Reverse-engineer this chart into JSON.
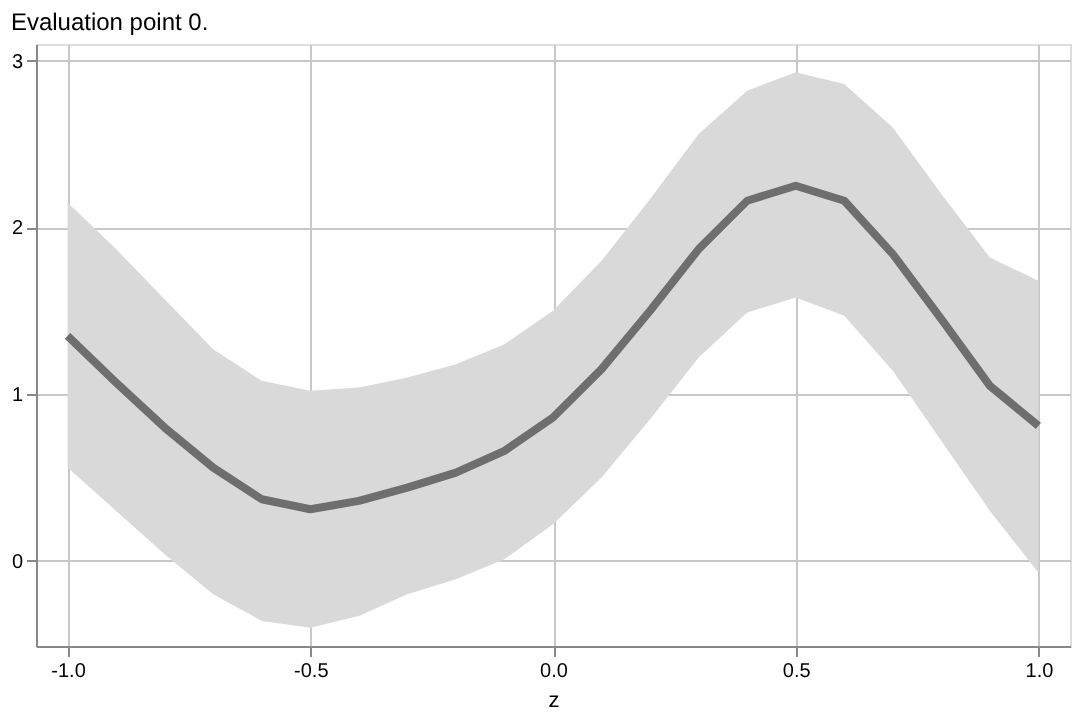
{
  "chart_data": {
    "type": "line",
    "title": "Evaluation point 0.",
    "xlabel": "z",
    "x": [
      -1.0,
      -0.9,
      -0.8,
      -0.7,
      -0.6,
      -0.5,
      -0.4,
      -0.3,
      -0.2,
      -0.1,
      0.0,
      0.1,
      0.2,
      0.3,
      0.4,
      0.5,
      0.6,
      0.7,
      0.8,
      0.9,
      1.0
    ],
    "series": [
      {
        "color": "#6e6e6e",
        "values": [
          1.35,
          1.07,
          0.8,
          0.56,
          0.37,
          0.31,
          0.36,
          0.44,
          0.53,
          0.66,
          0.86,
          1.15,
          1.5,
          1.87,
          2.16,
          2.25,
          2.16,
          1.84,
          1.45,
          1.05,
          0.81
        ],
        "lower": [
          0.56,
          0.3,
          0.04,
          -0.2,
          -0.36,
          -0.4,
          -0.33,
          -0.2,
          -0.11,
          0.01,
          0.22,
          0.5,
          0.85,
          1.22,
          1.49,
          1.58,
          1.47,
          1.14,
          0.72,
          0.3,
          -0.07
        ],
        "upper": [
          2.15,
          1.87,
          1.57,
          1.27,
          1.08,
          1.02,
          1.04,
          1.1,
          1.18,
          1.3,
          1.5,
          1.8,
          2.17,
          2.56,
          2.82,
          2.93,
          2.86,
          2.6,
          2.2,
          1.82,
          1.68
        ]
      }
    ],
    "xlim": [
      -1.065,
      1.065
    ],
    "ylim": [
      -0.51,
      3.1
    ],
    "xticks": [
      {
        "value": -1.0,
        "label": "-1.0"
      },
      {
        "value": -0.5,
        "label": "-0.5"
      },
      {
        "value": 0.0,
        "label": "0.0"
      },
      {
        "value": 0.5,
        "label": "0.5"
      },
      {
        "value": 1.0,
        "label": "1.0"
      }
    ],
    "yticks": [
      0,
      1,
      2,
      3
    ],
    "grid": true,
    "line_style": "solid",
    "marker": "none"
  }
}
